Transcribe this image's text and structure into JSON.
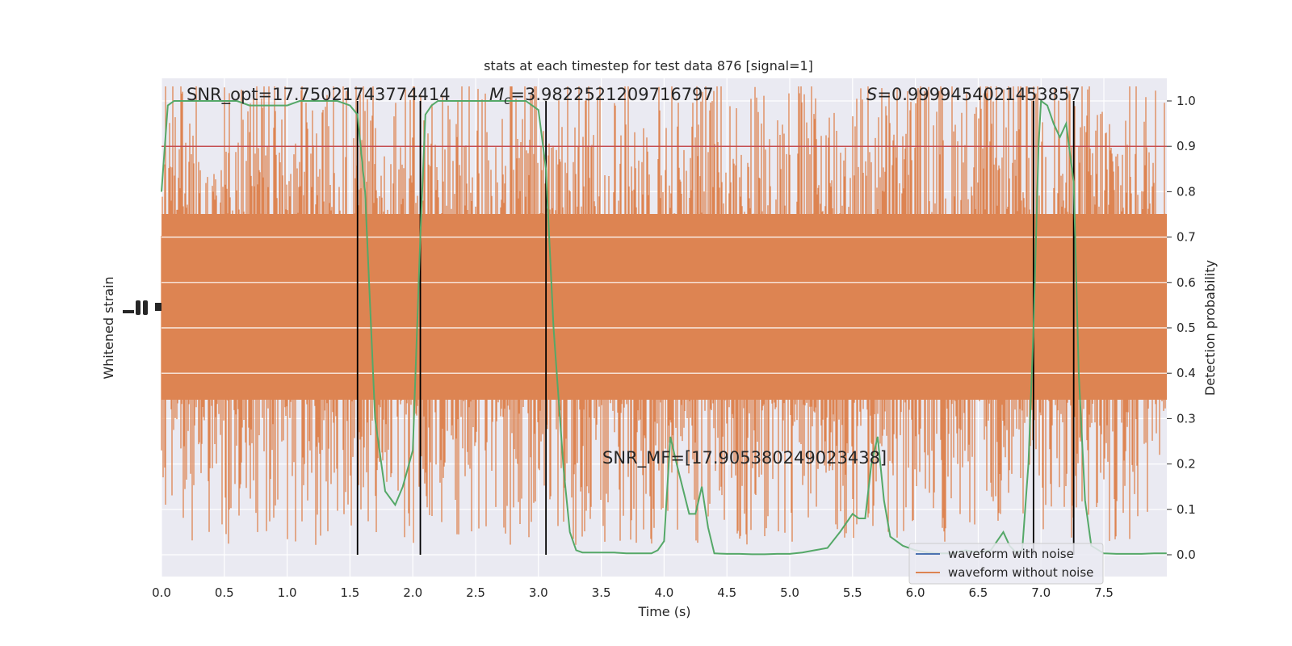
{
  "chart_data": {
    "type": "line",
    "title": "stats at each timestep for test data 876 [signal=1]",
    "xlabel": "Time (s)",
    "ylabel_left": "Whitened strain",
    "ylabel_right": "Detection probability",
    "xlim": [
      0,
      8.0
    ],
    "ylim_right": [
      -0.05,
      1.05
    ],
    "grid": true,
    "x_ticks": [
      "0.0",
      "0.5",
      "1.0",
      "1.5",
      "2.0",
      "2.5",
      "3.0",
      "3.5",
      "4.0",
      "4.5",
      "5.0",
      "5.5",
      "6.0",
      "6.5",
      "7.0",
      "7.5"
    ],
    "y_ticks_right": [
      "0.0",
      "0.1",
      "0.2",
      "0.3",
      "0.4",
      "0.5",
      "0.6",
      "0.7",
      "0.8",
      "0.9",
      "1.0"
    ],
    "threshold": 0.9,
    "vertical_lines": [
      1.56,
      2.06,
      3.06,
      6.94,
      7.26
    ],
    "annotations": {
      "snr_opt": "SNR_opt=17.75021743774414",
      "mc_symbol": "M",
      "mc_sub": "c",
      "mc_value": "=3.9822521209716797",
      "s_symbol": "S",
      "s_value": "=0.9999454021453857",
      "snr_mf": "SNR_MF=[17.905380249023438]"
    },
    "legend": {
      "placement": "lower-right",
      "entries": [
        "waveform with noise",
        "waveform without noise"
      ]
    },
    "series": [
      {
        "name": "detection probability",
        "x": [
          0.0,
          0.05,
          0.1,
          0.2,
          0.3,
          0.4,
          0.5,
          0.6,
          0.7,
          0.8,
          0.9,
          1.0,
          1.1,
          1.2,
          1.3,
          1.4,
          1.5,
          1.56,
          1.62,
          1.7,
          1.78,
          1.86,
          1.92,
          2.0,
          2.06,
          2.1,
          2.15,
          2.2,
          2.3,
          2.4,
          2.5,
          2.6,
          2.7,
          2.8,
          2.9,
          3.0,
          3.06,
          3.12,
          3.2,
          3.25,
          3.3,
          3.35,
          3.4,
          3.5,
          3.6,
          3.7,
          3.8,
          3.9,
          3.95,
          4.0,
          4.05,
          4.1,
          4.2,
          4.25,
          4.3,
          4.35,
          4.4,
          4.5,
          4.6,
          4.7,
          4.8,
          4.9,
          5.0,
          5.1,
          5.2,
          5.3,
          5.4,
          5.5,
          5.55,
          5.6,
          5.65,
          5.7,
          5.75,
          5.8,
          5.9,
          6.0,
          6.1,
          6.2,
          6.3,
          6.4,
          6.5,
          6.6,
          6.7,
          6.75,
          6.8,
          6.85,
          6.9,
          6.94,
          6.98,
          7.0,
          7.05,
          7.1,
          7.15,
          7.2,
          7.26,
          7.3,
          7.35,
          7.4,
          7.5,
          7.6,
          7.7,
          7.8,
          7.9,
          8.0
        ],
        "y": [
          0.8,
          0.99,
          1.0,
          1.0,
          1.0,
          1.0,
          1.0,
          1.0,
          0.99,
          0.99,
          0.99,
          0.99,
          1.0,
          1.0,
          1.0,
          1.0,
          0.99,
          0.97,
          0.8,
          0.3,
          0.14,
          0.11,
          0.15,
          0.23,
          0.7,
          0.97,
          0.99,
          1.0,
          1.0,
          1.0,
          1.0,
          1.0,
          1.0,
          1.0,
          1.0,
          0.98,
          0.85,
          0.5,
          0.19,
          0.05,
          0.01,
          0.005,
          0.005,
          0.005,
          0.005,
          0.003,
          0.003,
          0.003,
          0.01,
          0.03,
          0.26,
          0.2,
          0.09,
          0.09,
          0.15,
          0.06,
          0.003,
          0.002,
          0.002,
          0.001,
          0.001,
          0.002,
          0.002,
          0.005,
          0.01,
          0.015,
          0.05,
          0.09,
          0.08,
          0.08,
          0.2,
          0.26,
          0.12,
          0.04,
          0.02,
          0.01,
          0.005,
          0.003,
          0.003,
          0.01,
          0.005,
          0.01,
          0.05,
          0.02,
          0.005,
          0.01,
          0.2,
          0.5,
          0.9,
          1.0,
          0.99,
          0.95,
          0.92,
          0.95,
          0.82,
          0.4,
          0.12,
          0.02,
          0.003,
          0.002,
          0.002,
          0.002,
          0.003,
          0.003
        ]
      }
    ]
  }
}
